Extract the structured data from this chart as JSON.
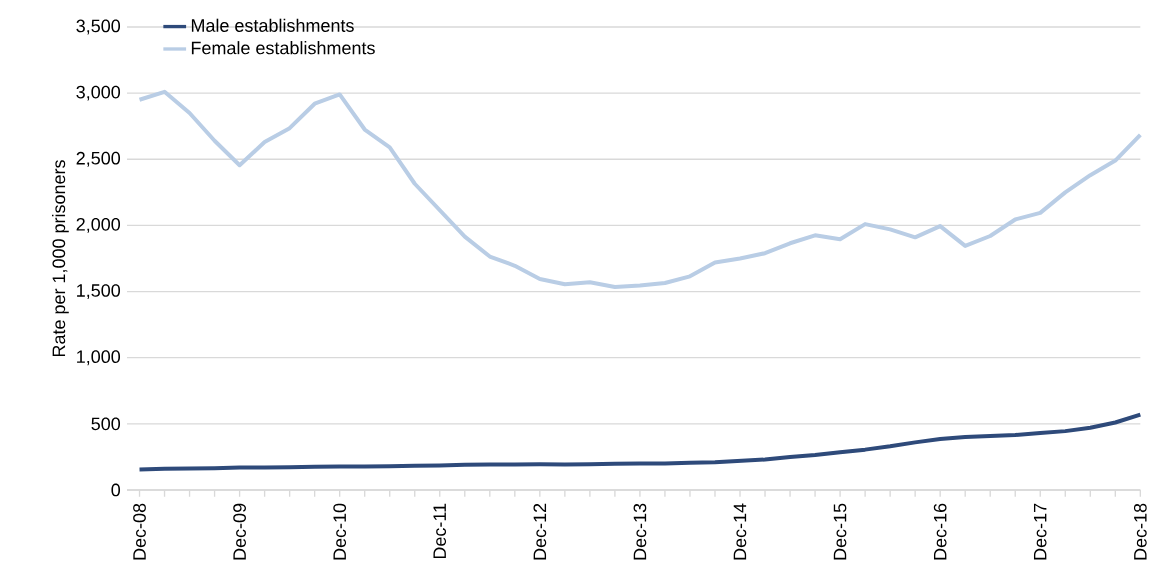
{
  "chart_data": {
    "type": "line",
    "ylabel": "Rate per 1,000 prisoners",
    "categories": [
      "Dec-08",
      null,
      null,
      null,
      "Dec-09",
      null,
      null,
      null,
      "Dec-10",
      null,
      null,
      null,
      "Dec-11",
      null,
      null,
      null,
      "Dec-12",
      null,
      null,
      null,
      "Dec-13",
      null,
      null,
      null,
      "Dec-14",
      null,
      null,
      null,
      "Dec-15",
      null,
      null,
      null,
      "Dec-16",
      null,
      null,
      null,
      "Dec-17",
      null,
      null,
      null,
      "Dec-18"
    ],
    "series": [
      {
        "name": "Male establishments",
        "color": "#2e4a7a",
        "values": [
          155,
          160,
          162,
          165,
          170,
          170,
          172,
          175,
          177,
          178,
          180,
          183,
          186,
          190,
          192,
          193,
          195,
          193,
          195,
          198,
          200,
          200,
          205,
          210,
          220,
          230,
          250,
          265,
          285,
          305,
          330,
          360,
          385,
          400,
          408,
          415,
          430,
          445,
          470,
          510,
          570
        ]
      },
      {
        "name": "Female establishments",
        "color": "#b9cde5",
        "values": [
          2950,
          3010,
          2850,
          2640,
          2455,
          2630,
          2735,
          2920,
          2990,
          2725,
          2590,
          2315,
          2115,
          1915,
          1765,
          1695,
          1595,
          1555,
          1570,
          1535,
          1545,
          1565,
          1615,
          1720,
          1750,
          1790,
          1865,
          1925,
          1895,
          2010,
          1970,
          1910,
          1995,
          1845,
          1920,
          2045,
          2095,
          2250,
          2380,
          2490,
          2685
        ]
      }
    ],
    "ylim": [
      0,
      3500
    ],
    "yticks": [
      0,
      500,
      {
        "value": 1000,
        "label": "1,000"
      },
      {
        "value": 1500,
        "label": "1,500"
      },
      {
        "value": 2000,
        "label": "2,000"
      },
      {
        "value": 2500,
        "label": "2,500"
      },
      {
        "value": 3000,
        "label": "3,000"
      },
      {
        "value": 3500,
        "label": "3,500"
      }
    ],
    "grid": "y",
    "legend": "top left",
    "line_style": "solid"
  }
}
